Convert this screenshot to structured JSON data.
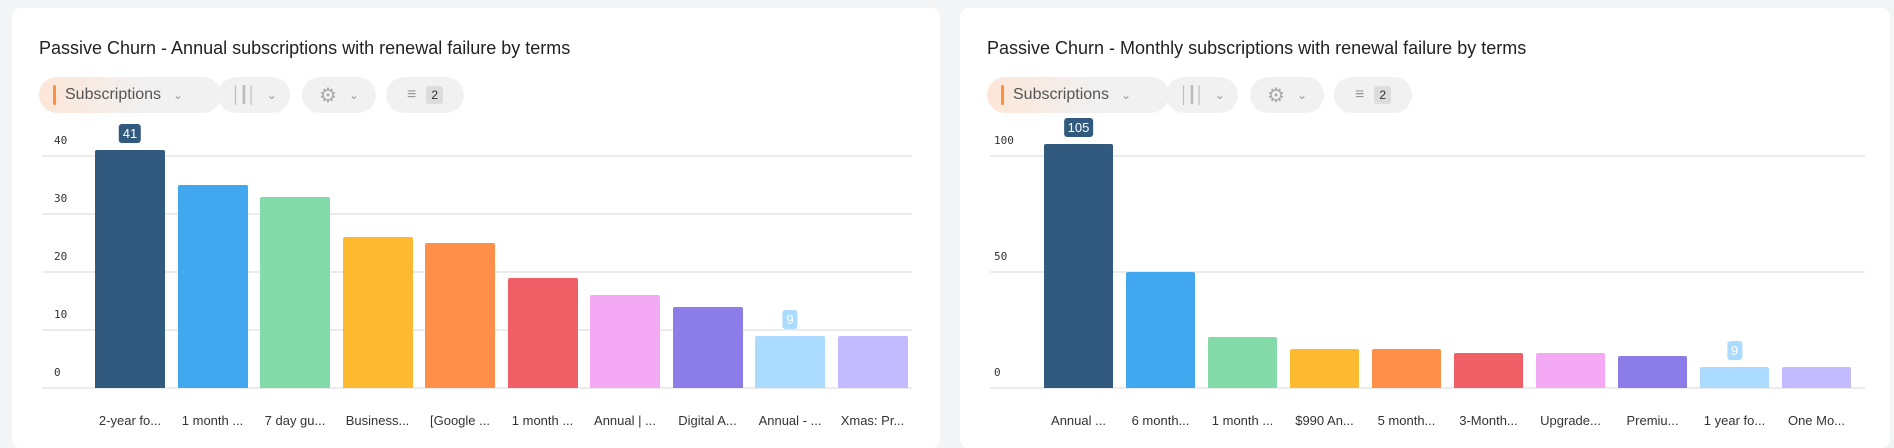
{
  "toolbar": {
    "metric_label": "Subscriptions",
    "filter_count": "2"
  },
  "colors": [
    "#325a7e",
    "#41a7ef",
    "#82dba8",
    "#fdba30",
    "#ff8f49",
    "#f15f66",
    "#f4a9f4",
    "#8c7de8",
    "#abdbff",
    "#c4baff"
  ],
  "chart_data": [
    {
      "type": "bar",
      "title": "Passive Churn - Annual subscriptions with renewal failure by terms",
      "categories": [
        "2-year fo...",
        "1 month ...",
        "7 day gu...",
        "Business...",
        "[Google ...",
        "1 month ...",
        "Annual | ...",
        "Digital A...",
        "Annual - ...",
        "Xmas: Pr..."
      ],
      "values": [
        41,
        35,
        33,
        26,
        25,
        19,
        16,
        14,
        9,
        9
      ],
      "data_labels": {
        "0": "41",
        "8": "9"
      },
      "yticks": [
        0,
        10,
        20,
        30,
        40
      ],
      "ylim": [
        0,
        40
      ],
      "grid": true
    },
    {
      "type": "bar",
      "title": "Passive Churn - Monthly subscriptions with renewal failure by terms",
      "categories": [
        "Annual ...",
        "6 month...",
        "1 month ...",
        "$990 An...",
        "5 month...",
        "3-Month...",
        "Upgrade...",
        "Premiu...",
        "1 year fo...",
        "One Mo..."
      ],
      "values": [
        105,
        50,
        22,
        17,
        17,
        15,
        15,
        14,
        9,
        9
      ],
      "data_labels": {
        "0": "105",
        "8": "9"
      },
      "yticks": [
        0,
        50,
        100
      ],
      "ylim": [
        0,
        100
      ],
      "grid": true
    }
  ]
}
